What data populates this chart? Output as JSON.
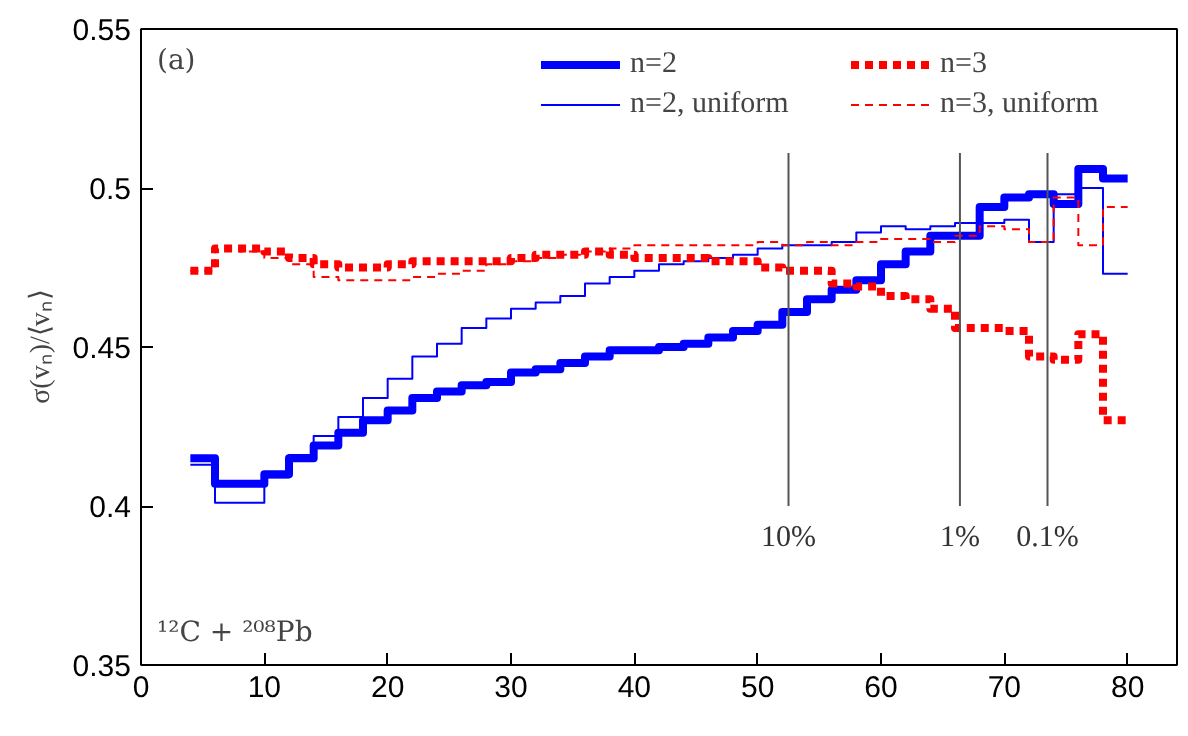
{
  "chart_data": {
    "type": "step",
    "ylabel": "σ(vₙ)/⟨vₙ⟩",
    "x": [
      4,
      6,
      8,
      10,
      12,
      14,
      16,
      18,
      20,
      22,
      24,
      26,
      28,
      30,
      32,
      34,
      36,
      38,
      40,
      42,
      44,
      46,
      48,
      50,
      52,
      54,
      56,
      58,
      60,
      62,
      64,
      66,
      68,
      70,
      72,
      74,
      76,
      78,
      80
    ],
    "xlim": [
      0,
      84
    ],
    "xticks": [
      0,
      10,
      20,
      30,
      40,
      50,
      60,
      70,
      80
    ],
    "ylim": [
      0.35,
      0.55
    ],
    "yticks": [
      0.35,
      0.4,
      0.45,
      0.5,
      0.55
    ],
    "grid": false,
    "legend": "top",
    "marker": "none",
    "series": [
      {
        "name": "n=2",
        "color": "#0000ff",
        "line_style": "solid",
        "values": [
          0.415,
          0.407,
          0.407,
          0.41,
          0.415,
          0.419,
          0.423,
          0.427,
          0.43,
          0.434,
          0.436,
          0.438,
          0.439,
          0.442,
          0.443,
          0.445,
          0.447,
          0.449,
          0.449,
          0.45,
          0.451,
          0.453,
          0.455,
          0.457,
          0.461,
          0.465,
          0.468,
          0.471,
          0.476,
          0.48,
          0.485,
          0.485,
          0.494,
          0.497,
          0.498,
          0.495,
          0.506,
          0.503,
          0.503
        ]
      },
      {
        "name": "n=2, uniform",
        "color": "#0000ff",
        "line_style": "solid",
        "values": [
          0.413,
          0.401,
          0.401,
          0.409,
          0.416,
          0.422,
          0.428,
          0.434,
          0.44,
          0.447,
          0.451,
          0.456,
          0.459,
          0.462,
          0.464,
          0.466,
          0.47,
          0.472,
          0.474,
          0.476,
          0.477,
          0.478,
          0.479,
          0.481,
          0.482,
          0.482,
          0.483,
          0.486,
          0.488,
          0.487,
          0.488,
          0.489,
          0.489,
          0.49,
          0.483,
          0.498,
          0.5,
          0.473,
          0.473
        ]
      },
      {
        "name": "n=3",
        "color": "#ff0000",
        "line_style": "dashed",
        "values": [
          0.474,
          0.481,
          0.481,
          0.48,
          0.478,
          0.476,
          0.475,
          0.475,
          0.476,
          0.477,
          0.477,
          0.477,
          0.477,
          0.478,
          0.479,
          0.479,
          0.48,
          0.479,
          0.478,
          0.478,
          0.478,
          0.477,
          0.477,
          0.475,
          0.474,
          0.474,
          0.47,
          0.469,
          0.466,
          0.465,
          0.462,
          0.456,
          0.456,
          0.455,
          0.447,
          0.446,
          0.454,
          0.427,
          0.427
        ]
      },
      {
        "name": "n=3, uniform",
        "color": "#ff0000",
        "line_style": "dashed",
        "values": [
          0.474,
          0.481,
          0.48,
          0.478,
          0.476,
          0.472,
          0.471,
          0.471,
          0.471,
          0.472,
          0.473,
          0.474,
          0.476,
          0.477,
          0.478,
          0.479,
          0.48,
          0.481,
          0.482,
          0.482,
          0.482,
          0.482,
          0.482,
          0.483,
          0.482,
          0.483,
          0.482,
          0.483,
          0.484,
          0.484,
          0.483,
          0.485,
          0.488,
          0.487,
          0.483,
          0.497,
          0.482,
          0.494,
          0.494
        ]
      }
    ],
    "ref_lines": [
      {
        "axis": "x",
        "value": 52.5,
        "color": "#555555"
      },
      {
        "axis": "x",
        "value": 66.4,
        "color": "#555555"
      },
      {
        "axis": "x",
        "value": 73.5,
        "color": "#555555"
      }
    ],
    "annotations": [
      "(a)",
      "¹²C + ²⁰⁸Pb",
      "10%",
      "1%",
      "0.1%"
    ]
  }
}
